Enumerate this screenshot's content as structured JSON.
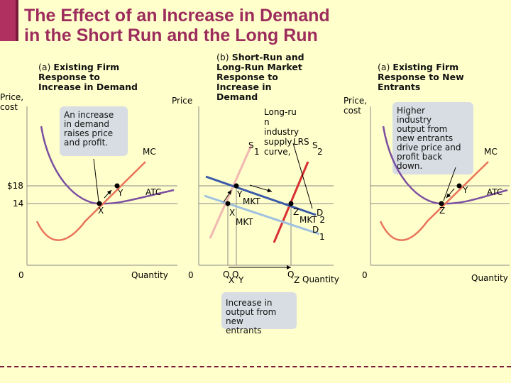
{
  "title": {
    "line1": "The Effect of an Increase in Demand",
    "line2": "in the Short Run and the Long Run"
  },
  "panels": {
    "a": {
      "prefix": "(a)",
      "line1": "Existing Firm",
      "line2": "Response to",
      "line3": "Increase in Demand",
      "y_label_1": "Price,",
      "y_label_2": "cost",
      "x_label": "Quantity",
      "origin": "0",
      "bubble": [
        "An increase",
        "in demand",
        "raises price",
        "and profit."
      ],
      "mc": "MC",
      "atc": "ATC",
      "point_x": "X",
      "point_y": "Y",
      "price_high": "$18",
      "price_low": "14"
    },
    "b": {
      "prefix": "(b)",
      "line1": "Short-Run and",
      "line2": "Long-Run Market",
      "line3": "Response to",
      "line4": "Increase in",
      "line5": "Demand",
      "y_label": "Price",
      "x_label": "Quantity",
      "origin": "0",
      "lrs_label": [
        "Long-ru",
        "n",
        "industry",
        "supply",
        "curve,",
        "LRS"
      ],
      "s1": "S",
      "s1_sub": "1",
      "s2": "S",
      "s2_sub": "2",
      "d_mkt2": "D",
      "d_mkt2_sub": "MKT 2",
      "d_mkt1": "D",
      "d_mkt1_sub": "MKT",
      "d_mkt1_num": "1",
      "point_x": "X",
      "point_y": "Y",
      "point_z": "Z",
      "mkt_y": "MKT",
      "q_label": "Q",
      "qx": "X",
      "qy": "Y",
      "qz": "Z",
      "bubble": [
        "Increase in",
        "output from",
        "new",
        "entrants"
      ]
    },
    "c": {
      "prefix": "(a)",
      "line1": "Existing Firm",
      "line2": "Response to New",
      "line3": "Entrants",
      "y_label_1": "Price,",
      "y_label_2": "cost",
      "x_label": "Quantity",
      "origin": "0",
      "bubble": [
        "Higher",
        "industry",
        "output from",
        "new entrants",
        "drive price and",
        "profit back",
        "down."
      ],
      "mc": "MC",
      "atc": "ATC",
      "point_z": "Z",
      "point_y": "Y"
    }
  },
  "colors": {
    "title": "#9c2c5c",
    "atc": "#7b4fa0",
    "mc": "#e8735a",
    "demand": "#3a5aa8",
    "demand_light": "#9fc0e0",
    "supply1": "#f0b8b0",
    "supply2": "#d83030"
  }
}
